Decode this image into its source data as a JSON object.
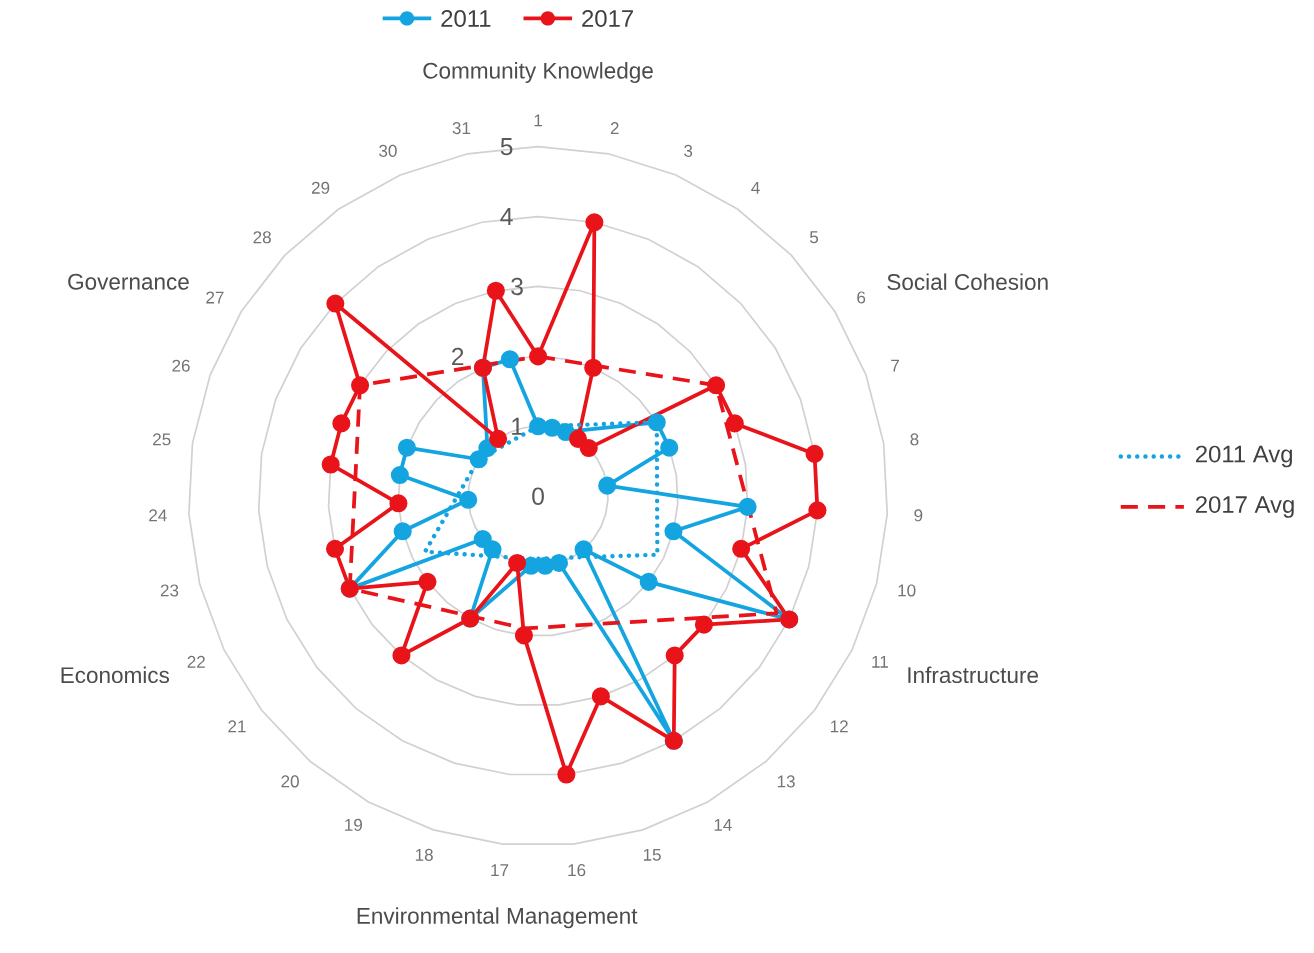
{
  "chart_data": {
    "type": "radar",
    "categories": [
      "1",
      "2",
      "3",
      "4",
      "5",
      "6",
      "7",
      "8",
      "9",
      "10",
      "11",
      "12",
      "13",
      "14",
      "15",
      "16",
      "17",
      "18",
      "19",
      "20",
      "21",
      "22",
      "23",
      "24",
      "25",
      "26",
      "27",
      "28",
      "29",
      "30",
      "31"
    ],
    "series": [
      {
        "name": "2011",
        "color": "#14a5e0",
        "values": [
          1,
          1,
          1,
          null,
          null,
          2,
          2,
          1,
          3,
          2,
          4,
          2,
          1,
          4,
          1,
          1,
          1,
          null,
          2,
          1,
          1,
          3,
          2,
          1,
          2,
          2,
          1,
          1,
          null,
          2,
          2
        ]
      },
      {
        "name": "2017",
        "color": "#e8141a",
        "values": [
          2,
          4,
          2,
          1,
          1,
          3,
          3,
          4,
          4,
          3,
          4,
          3,
          3,
          4,
          3,
          4,
          2,
          1,
          2,
          3,
          2,
          3,
          3,
          2,
          3,
          3,
          3,
          4,
          1,
          2,
          3
        ]
      },
      {
        "name": "2011 Avg",
        "color": "#14a5e0",
        "line_style": "dotted",
        "marker": "none",
        "values": [
          1,
          null,
          null,
          null,
          null,
          2,
          null,
          null,
          null,
          null,
          1.9,
          null,
          null,
          null,
          null,
          null,
          0.9,
          null,
          null,
          null,
          null,
          1.8,
          null,
          null,
          null,
          null,
          1,
          null,
          null,
          null,
          null
        ]
      },
      {
        "name": "2017 Avg",
        "color": "#e8141a",
        "line_style": "dashed",
        "marker": "none",
        "values": [
          2,
          null,
          null,
          null,
          null,
          3,
          null,
          null,
          null,
          null,
          3.8,
          null,
          null,
          null,
          null,
          null,
          1.9,
          null,
          null,
          null,
          null,
          3,
          null,
          null,
          null,
          null,
          3,
          null,
          null,
          null,
          null
        ]
      }
    ],
    "annotations": [
      "Community Knowledge",
      "Social Cohesion",
      "Infrastructure",
      "Environmental Management",
      "Economics",
      "Governance"
    ],
    "ylim": [
      0,
      5
    ],
    "yticks": [
      0,
      1,
      2,
      3,
      4,
      5
    ],
    "grid": true,
    "legend": "top",
    "marker": "circle",
    "line_style": "solid"
  }
}
